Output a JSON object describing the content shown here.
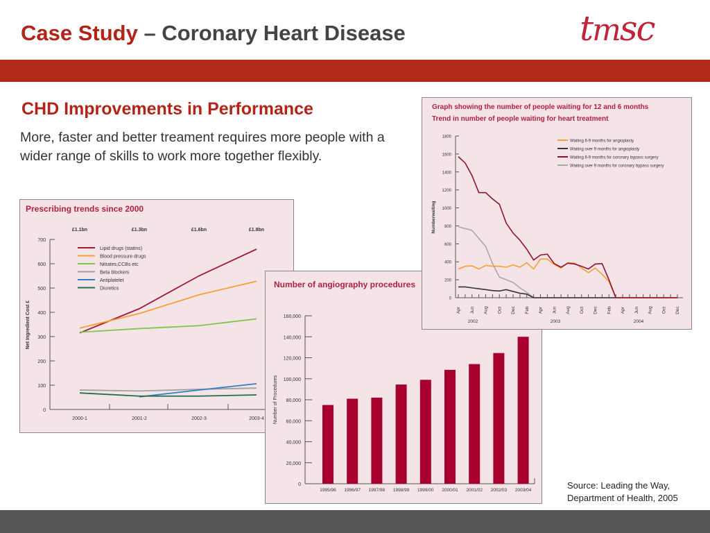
{
  "header": {
    "title_highlight": "Case Study",
    "title_rest": " – Coronary Heart Disease",
    "logo_text": "tmsc"
  },
  "subtitle": "CHD Improvements in Performance",
  "body_text": "More, faster and better treament requires more people with a wider range of skills to work more together flexibly.",
  "source": {
    "line1": "Source: Leading the Way,",
    "line2": "Department of Health, 2005"
  },
  "colors": {
    "accent": "#b22a1a",
    "chart_title": "#b0203f",
    "panel_bg": "#f4e4e8",
    "bar": "#a8002e"
  },
  "chart_data": [
    {
      "type": "line",
      "title": "Prescribing trends since 2000",
      "ylabel": "Net Ingredient Cost £",
      "ylim": [
        0,
        700
      ],
      "yticks": [
        0,
        100,
        200,
        300,
        400,
        500,
        600,
        700
      ],
      "categories": [
        "2000-1",
        "2001-2",
        "2002-3",
        "2003-4"
      ],
      "top_labels": [
        "£1.1bn",
        "£1.3bn",
        "£1.6bn",
        "£1.8bn"
      ],
      "legend": "top-left",
      "series": [
        {
          "name": "Lipid drugs (statins)",
          "color": "#a3173c",
          "values": [
            315,
            415,
            550,
            660
          ]
        },
        {
          "name": "Blood pressure drugs",
          "color": "#f5a030",
          "values": [
            335,
            395,
            472,
            528
          ]
        },
        {
          "name": "Nitrates,CCBs etc",
          "color": "#7fc54a",
          "values": [
            318,
            333,
            345,
            373
          ]
        },
        {
          "name": "Beta blockers",
          "color": "#a0a0a0",
          "values": [
            80,
            76,
            83,
            88
          ]
        },
        {
          "name": "Antiplatelet",
          "color": "#2f7fc8",
          "values": [
            null,
            52,
            80,
            106
          ]
        },
        {
          "name": "Diuretics",
          "color": "#1e6e4a",
          "values": [
            68,
            55,
            55,
            60
          ]
        }
      ]
    },
    {
      "type": "line",
      "title": "Graph showing the number of people waiting for 12 and 6 months",
      "subtitle": "Trend in number of people waiting for heart treatment",
      "ylabel": "Numberwaiting",
      "ylim": [
        0,
        1800
      ],
      "yticks": [
        0,
        200,
        400,
        600,
        800,
        1000,
        1200,
        1400,
        1600,
        1800
      ],
      "x_tick_labels": [
        "Apr",
        "Jun",
        "Aug",
        "Oct",
        "Dec",
        "Feb",
        "Apr",
        "Jun",
        "Aug",
        "Oct",
        "Dec",
        "Feb",
        "Apr",
        "Jun",
        "Aug",
        "Oct",
        "Dec"
      ],
      "years": [
        "2002",
        "2003",
        "2004"
      ],
      "x_range": [
        "Apr 2002",
        "Dec 2004"
      ],
      "legend": "top-right",
      "series": [
        {
          "name": "Waiting 6-9 months for angioplasty",
          "color": "#f5a030",
          "values": [
            320,
            350,
            355,
            320,
            360,
            350,
            350,
            340,
            365,
            340,
            390,
            320,
            430,
            430,
            370,
            330,
            390,
            385,
            330,
            280,
            330,
            260,
            180,
            0,
            0,
            0,
            0,
            0,
            0,
            0,
            0,
            0,
            0
          ]
        },
        {
          "name": "Waiting over 9 months for angioplasty",
          "color": "#333333",
          "values": [
            120,
            120,
            110,
            100,
            90,
            80,
            75,
            90,
            70,
            50,
            40,
            0,
            0,
            0,
            0,
            0,
            0,
            0,
            0,
            0,
            0,
            0,
            0,
            0,
            0,
            0,
            0,
            0,
            0,
            0,
            0,
            0,
            0
          ]
        },
        {
          "name": "Waiting 6-9 months for coronary bypass surgery",
          "color": "#8e1030",
          "values": [
            1570,
            1500,
            1360,
            1170,
            1170,
            1100,
            1040,
            830,
            720,
            640,
            540,
            420,
            475,
            485,
            380,
            340,
            385,
            375,
            350,
            320,
            375,
            380,
            200,
            0,
            0,
            0,
            0,
            0,
            0,
            0,
            0,
            0,
            0
          ]
        },
        {
          "name": "Waiting over 9 months for coronary bypass surgery",
          "color": "#a8a8a8",
          "values": [
            790,
            770,
            750,
            660,
            570,
            380,
            230,
            200,
            170,
            110,
            60,
            0,
            0,
            0,
            0,
            0,
            0,
            0,
            0,
            0,
            0,
            0,
            0,
            0,
            0,
            0,
            0,
            0,
            0,
            0,
            0,
            0,
            0
          ]
        }
      ]
    },
    {
      "type": "bar",
      "title": "Number of angiography procedures",
      "ylabel": "Number of Procedures",
      "ylim": [
        0,
        160000
      ],
      "yticks": [
        "0",
        "20,000",
        "40,000",
        "60,000",
        "80,000",
        "100,000",
        "120,000",
        "140,000",
        "160,000"
      ],
      "categories": [
        "1995/96",
        "1996/97",
        "1997/98",
        "1998/99",
        "1999/00",
        "2000/01",
        "2001/02",
        "2002/03",
        "2003/04"
      ],
      "values": [
        75000,
        81000,
        82000,
        94500,
        99000,
        108500,
        114000,
        124500,
        140000
      ]
    }
  ]
}
